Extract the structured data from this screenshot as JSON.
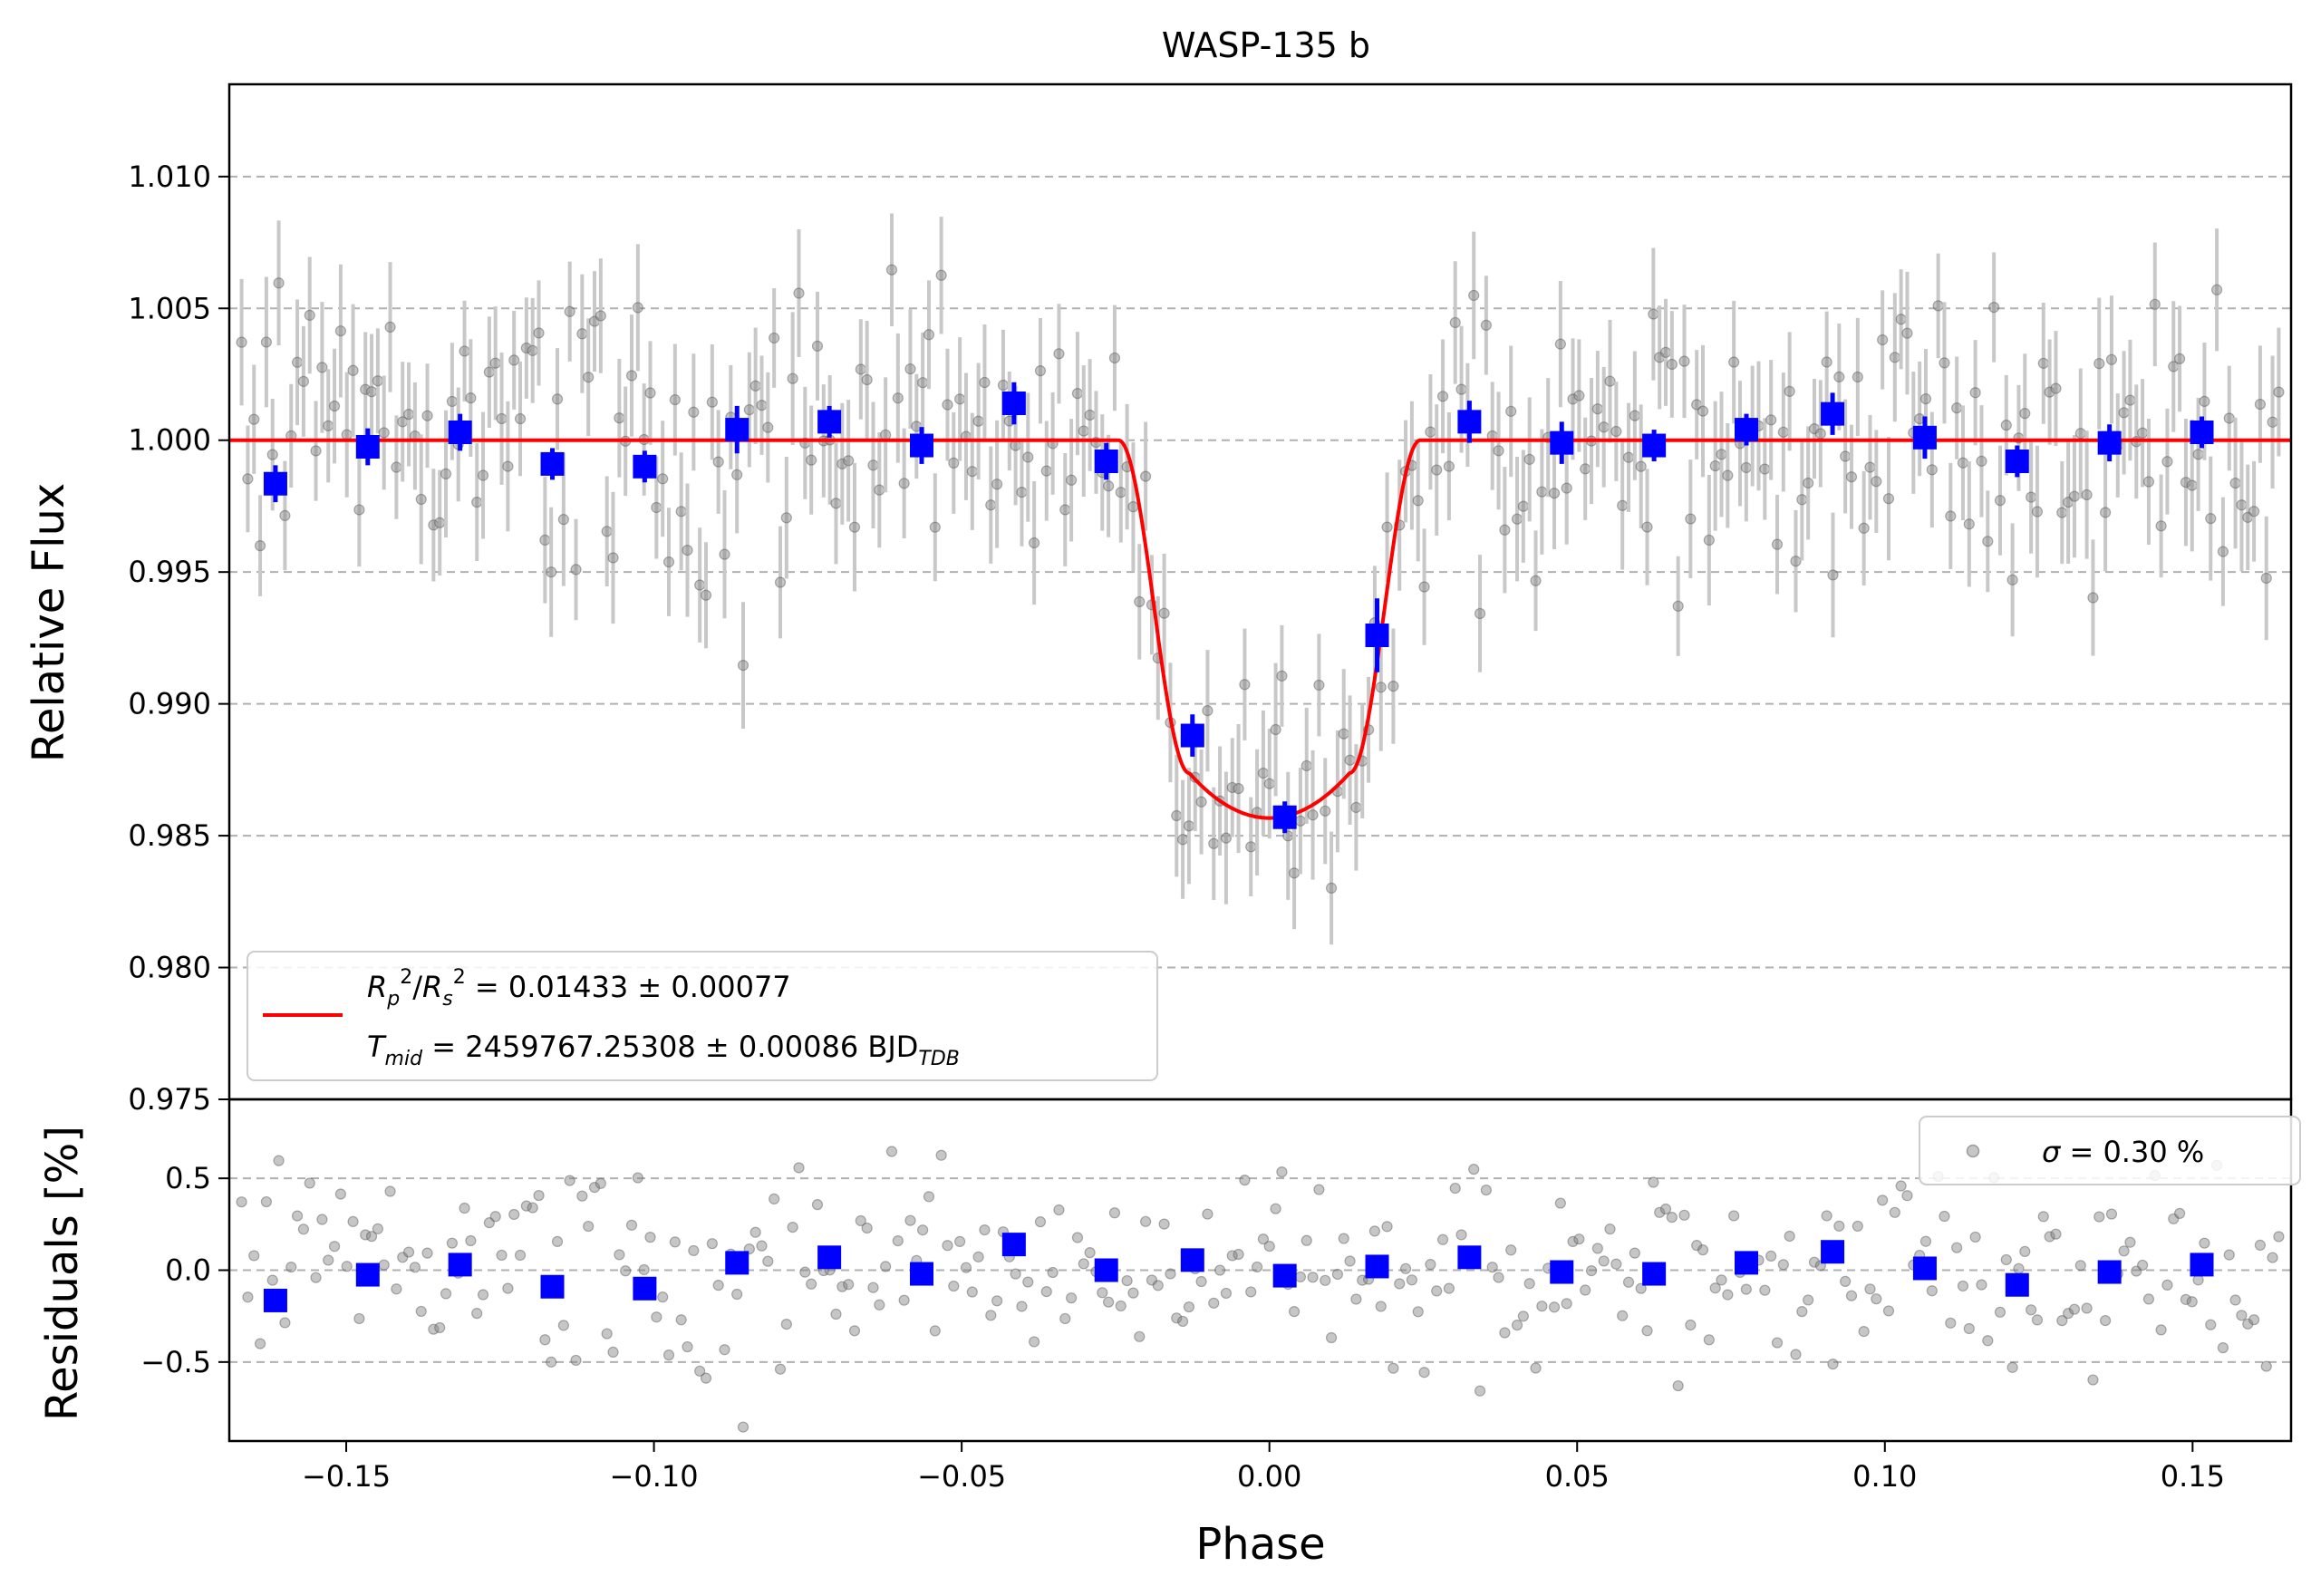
{
  "chart_data": [
    {
      "panel": "transit",
      "type": "scatter",
      "title": "WASP-135 b",
      "xlabel": "",
      "ylabel": "Relative Flux",
      "xlim": [
        -0.169,
        0.166
      ],
      "ylim": [
        0.975,
        1.0135
      ],
      "grid": "horizontal-dashed",
      "yticks": [
        "0.975",
        "0.980",
        "0.985",
        "0.990",
        "0.995",
        "1.000",
        "1.005",
        "1.010"
      ],
      "legend": {
        "placement": "lower-left",
        "line1": "R_p²/R_s² = 0.01433 ± 0.00077",
        "line2": "T_mid = 2459767.25308 ± 0.00086 BJD_TDB"
      },
      "model": {
        "name": "transit model",
        "color": "#ff0000",
        "depth": 0.01433,
        "depth_text": "0.01433",
        "depth_err": "0.00077",
        "tmid_text": "2459767.25308",
        "tmid_err": "0.00086",
        "baseline": 1.0,
        "t1": -0.0245,
        "t2": -0.013,
        "t3": 0.013,
        "t4": 0.0245
      },
      "binned": {
        "color": "#0000ff",
        "x": [
          -0.1615,
          -0.1465,
          -0.1315,
          -0.1165,
          -0.1015,
          -0.0865,
          -0.0715,
          -0.0565,
          -0.0415,
          -0.0265,
          -0.0125,
          0.0025,
          0.0175,
          0.0325,
          0.0475,
          0.0625,
          0.0775,
          0.0915,
          0.1065,
          0.1215,
          0.1365,
          0.1515
        ],
        "y": [
          0.99835,
          0.99975,
          1.0003,
          0.9991,
          0.999,
          1.0004,
          1.0007,
          0.9998,
          1.0014,
          0.9992,
          0.9888,
          0.9857,
          0.9926,
          1.0007,
          0.9999,
          0.9998,
          1.0004,
          1.001,
          1.0001,
          0.9992,
          0.9999,
          1.0003
        ],
        "err": [
          0.0007,
          0.0007,
          0.0007,
          0.0006,
          0.0006,
          0.0009,
          0.0006,
          0.0007,
          0.0008,
          0.0007,
          0.0008,
          0.0006,
          0.0014,
          0.0008,
          0.0008,
          0.0006,
          0.0006,
          0.0008,
          0.0008,
          0.0006,
          0.0007,
          0.0006
        ]
      },
      "raw_points": {
        "color": "#808080",
        "count": 330,
        "typical_error": 0.0022,
        "scatter_sigma": 0.003
      }
    },
    {
      "panel": "residuals",
      "type": "scatter",
      "xlabel": "Phase",
      "ylabel": "Residuals [%]",
      "xlim": [
        -0.169,
        0.166
      ],
      "ylim": [
        -0.93,
        0.93
      ],
      "grid": "horizontal-dashed",
      "xticks": [
        "−0.15",
        "−0.10",
        "−0.05",
        "0.00",
        "0.05",
        "0.10",
        "0.15"
      ],
      "yticks": [
        "−0.5",
        "0.0",
        "0.5"
      ],
      "legend": {
        "placement": "upper-right",
        "label": "σ = 0.30 %"
      },
      "sigma_text": "0.30",
      "binned_residuals": [
        -0.165,
        -0.025,
        0.03,
        -0.09,
        -0.1,
        0.04,
        0.07,
        -0.02,
        0.14,
        0.0,
        0.055,
        -0.03,
        0.02,
        0.07,
        -0.01,
        -0.02,
        0.04,
        0.1,
        0.01,
        -0.08,
        -0.01,
        0.03
      ]
    }
  ]
}
